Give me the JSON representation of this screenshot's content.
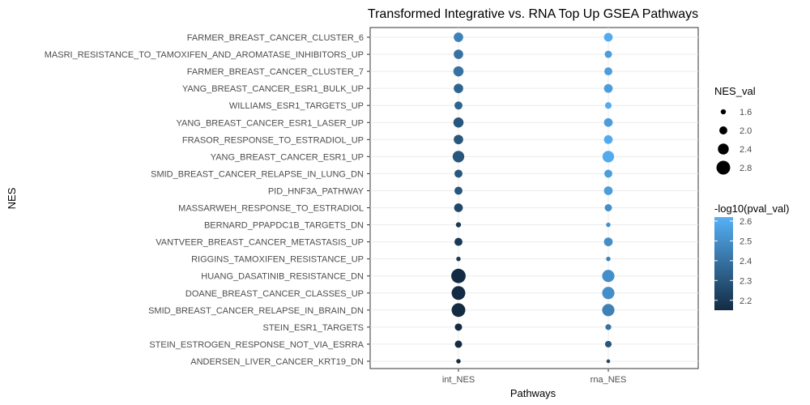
{
  "chart_data": {
    "type": "scatter",
    "title": "Transformed Integrative vs. RNA Top Up GSEA Pathways",
    "xlabel": "Pathways",
    "ylabel": "NES",
    "categories": [
      "int_NES",
      "rna_NES"
    ],
    "pathways": [
      "FARMER_BREAST_CANCER_CLUSTER_6",
      "MASRI_RESISTANCE_TO_TAMOXIFEN_AND_AROMATASE_INHIBITORS_UP",
      "FARMER_BREAST_CANCER_CLUSTER_7",
      "YANG_BREAST_CANCER_ESR1_BULK_UP",
      "WILLIAMS_ESR1_TARGETS_UP",
      "YANG_BREAST_CANCER_ESR1_LASER_UP",
      "FRASOR_RESPONSE_TO_ESTRADIOL_UP",
      "YANG_BREAST_CANCER_ESR1_UP",
      "SMID_BREAST_CANCER_RELAPSE_IN_LUNG_DN",
      "PID_HNF3A_PATHWAY",
      "MASSARWEH_RESPONSE_TO_ESTRADIOL",
      "BERNARD_PPAPDC1B_TARGETS_DN",
      "VANTVEER_BREAST_CANCER_METASTASIS_UP",
      "RIGGINS_TAMOXIFEN_RESISTANCE_UP",
      "HUANG_DASATINIB_RESISTANCE_DN",
      "DOANE_BREAST_CANCER_CLASSES_UP",
      "SMID_BREAST_CANCER_RELAPSE_IN_BRAIN_DN",
      "STEIN_ESR1_TARGETS",
      "STEIN_ESTROGEN_RESPONSE_NOT_VIA_ESRRA",
      "ANDERSEN_LIVER_CANCER_KRT19_DN"
    ],
    "series": [
      {
        "name": "int_NES",
        "nes": [
          2.2,
          2.2,
          2.3,
          2.2,
          2.0,
          2.3,
          2.2,
          2.5,
          2.0,
          2.0,
          2.1,
          1.6,
          2.0,
          1.5,
          2.9,
          2.8,
          2.8,
          1.9,
          1.9,
          1.5
        ],
        "neglog10p": [
          2.45,
          2.4,
          2.4,
          2.35,
          2.35,
          2.3,
          2.3,
          2.3,
          2.3,
          2.3,
          2.25,
          2.2,
          2.2,
          2.2,
          2.15,
          2.15,
          2.15,
          2.15,
          2.15,
          2.15
        ]
      },
      {
        "name": "rna_NES",
        "nes": [
          2.1,
          1.9,
          2.0,
          2.1,
          1.8,
          2.1,
          2.1,
          2.5,
          2.0,
          2.1,
          1.9,
          1.5,
          2.1,
          1.5,
          2.6,
          2.6,
          2.6,
          1.7,
          1.8,
          1.4
        ],
        "neglog10p": [
          2.6,
          2.55,
          2.55,
          2.55,
          2.6,
          2.55,
          2.6,
          2.6,
          2.55,
          2.55,
          2.5,
          2.5,
          2.5,
          2.45,
          2.5,
          2.5,
          2.45,
          2.4,
          2.3,
          2.25
        ]
      }
    ],
    "legend_size": {
      "title": "NES_val",
      "values": [
        1.6,
        2.0,
        2.4,
        2.8
      ],
      "labels": [
        "1.6",
        "2.0",
        "2.4",
        "2.8"
      ]
    },
    "legend_color": {
      "title": "-log10(pval_val)",
      "ticks": [
        2.2,
        2.3,
        2.4,
        2.5,
        2.6
      ],
      "labels": [
        "2.2",
        "2.3",
        "2.4",
        "2.5",
        "2.6"
      ],
      "range": [
        2.15,
        2.62
      ],
      "low_color": "#132B43",
      "high_color": "#56B1F7"
    },
    "legend_placement": "right",
    "grid": true
  }
}
